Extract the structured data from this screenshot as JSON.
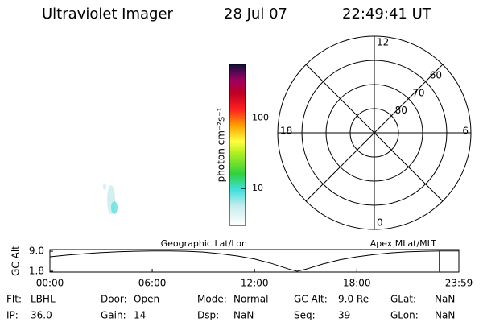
{
  "header": {
    "instrument": "Ultraviolet Imager",
    "date": "28 Jul 07",
    "time": "22:49:41 UT"
  },
  "colorbar": {
    "label": "photon cm⁻²s⁻¹",
    "log": true,
    "range": [
      3,
      575
    ],
    "ticks": [
      10,
      100
    ]
  },
  "polar": {
    "lat_lim": [
      90,
      50
    ],
    "lat_rings": [
      80,
      70,
      60
    ],
    "mlt_labels": [
      12,
      6,
      0,
      18
    ]
  },
  "map_labels": {
    "left": "Geographic Lat/Lon",
    "right": "Apex MLat/MLT"
  },
  "altitude": {
    "ylabel": "GC Alt",
    "color": "#000000",
    "marker_color": "#cc0000",
    "xlim": [
      0,
      23.983
    ],
    "ylim": [
      1.5,
      9.6
    ],
    "xticks": [
      {
        "value": 0,
        "label": "00:00"
      },
      {
        "value": 6,
        "label": "06:00"
      },
      {
        "value": 12,
        "label": "12:00"
      },
      {
        "value": 18,
        "label": "18:00"
      },
      {
        "value": 23.983,
        "label": "23:59"
      }
    ],
    "yticks": [
      {
        "value": 9.0,
        "label": "9.0"
      },
      {
        "value": 1.8,
        "label": "1.8"
      }
    ],
    "x": [
      0,
      1,
      2,
      3,
      4,
      5,
      6,
      7,
      8,
      9,
      10,
      11,
      12,
      13,
      14,
      14.5,
      15,
      16,
      17,
      18,
      19,
      20,
      21,
      22,
      23,
      23.983
    ],
    "values": [
      7.0,
      7.6,
      8.1,
      8.5,
      8.8,
      9.0,
      9.1,
      9.1,
      9.0,
      8.7,
      8.1,
      7.3,
      6.2,
      4.6,
      2.6,
      1.8,
      2.5,
      4.4,
      5.9,
      7.0,
      7.8,
      8.4,
      8.8,
      9.0,
      9.1,
      9.1
    ],
    "current_time": 22.828
  },
  "status": {
    "rows": [
      [
        [
          "Flt:",
          "LBHL"
        ],
        [
          "Door:",
          "Open"
        ],
        [
          "Mode:",
          "Normal"
        ],
        [
          "GC Alt:",
          "9.0 Re"
        ],
        [
          "GLat:",
          "NaN"
        ]
      ],
      [
        [
          "IP:",
          "36.0"
        ],
        [
          "Gain:",
          "14"
        ],
        [
          "Dsp:",
          "NaN"
        ],
        [
          "Seq:",
          "39"
        ],
        [
          "GLon:",
          "NaN"
        ]
      ]
    ]
  }
}
